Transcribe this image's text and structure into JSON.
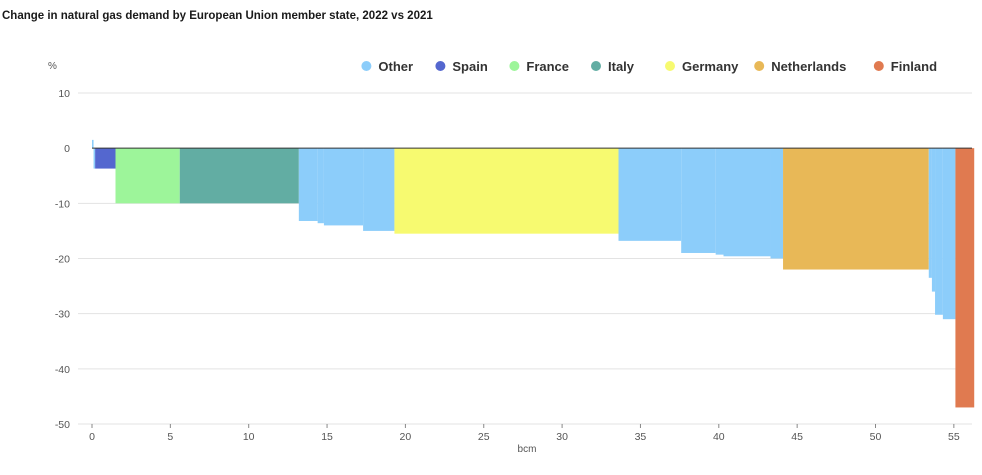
{
  "chart_data": {
    "type": "bar",
    "title": "Change in natural gas demand by European Union member state, 2022 vs 2021",
    "ylabel": "%",
    "xlabel": "bcm",
    "xlim": [
      0,
      56
    ],
    "ylim": [
      -50,
      10
    ],
    "x_ticks": [
      0,
      5,
      10,
      15,
      20,
      25,
      30,
      35,
      40,
      45,
      50,
      55
    ],
    "y_ticks": [
      10,
      0,
      -10,
      -20,
      -30,
      -40,
      -50
    ],
    "grid": true,
    "legend_position": "top-right",
    "series": [
      {
        "name": "Other",
        "color": "#8ccdfa"
      },
      {
        "name": "Spain",
        "color": "#5467cf"
      },
      {
        "name": "France",
        "color": "#9df59a"
      },
      {
        "name": "Italy",
        "color": "#62ada3"
      },
      {
        "name": "Germany",
        "color": "#f7fa70"
      },
      {
        "name": "Netherlands",
        "color": "#e8b857"
      },
      {
        "name": "Finland",
        "color": "#e07a50"
      }
    ],
    "segments": [
      {
        "series": "Other",
        "x0": 0.0,
        "x1": 0.1,
        "value": 1.5
      },
      {
        "series": "Other",
        "x0": 0.1,
        "x1": 0.2,
        "value": -3.7
      },
      {
        "series": "Spain",
        "x0": 0.2,
        "x1": 1.5,
        "value": -3.7
      },
      {
        "series": "France",
        "x0": 1.5,
        "x1": 5.6,
        "value": -10.0
      },
      {
        "series": "Italy",
        "x0": 5.6,
        "x1": 13.2,
        "value": -10.0
      },
      {
        "series": "Other",
        "x0": 13.2,
        "x1": 14.4,
        "value": -13.2
      },
      {
        "series": "Other",
        "x0": 14.4,
        "x1": 14.8,
        "value": -13.6
      },
      {
        "series": "Other",
        "x0": 14.8,
        "x1": 17.3,
        "value": -14.0
      },
      {
        "series": "Other",
        "x0": 17.3,
        "x1": 19.3,
        "value": -15.0
      },
      {
        "series": "Germany",
        "x0": 19.3,
        "x1": 33.6,
        "value": -15.5
      },
      {
        "series": "Other",
        "x0": 33.6,
        "x1": 37.6,
        "value": -16.8
      },
      {
        "series": "Other",
        "x0": 37.6,
        "x1": 39.8,
        "value": -19.0
      },
      {
        "series": "Other",
        "x0": 39.8,
        "x1": 40.3,
        "value": -19.3
      },
      {
        "series": "Other",
        "x0": 40.3,
        "x1": 43.3,
        "value": -19.6
      },
      {
        "series": "Other",
        "x0": 43.3,
        "x1": 44.1,
        "value": -20.0
      },
      {
        "series": "Netherlands",
        "x0": 44.1,
        "x1": 53.4,
        "value": -22.0
      },
      {
        "series": "Other",
        "x0": 53.4,
        "x1": 53.6,
        "value": -23.5
      },
      {
        "series": "Other",
        "x0": 53.6,
        "x1": 53.8,
        "value": -26.0
      },
      {
        "series": "Other",
        "x0": 53.8,
        "x1": 54.3,
        "value": -30.2
      },
      {
        "series": "Other",
        "x0": 54.3,
        "x1": 55.1,
        "value": -31.0
      },
      {
        "series": "Finland",
        "x0": 55.1,
        "x1": 56.3,
        "value": -47.0
      }
    ]
  }
}
